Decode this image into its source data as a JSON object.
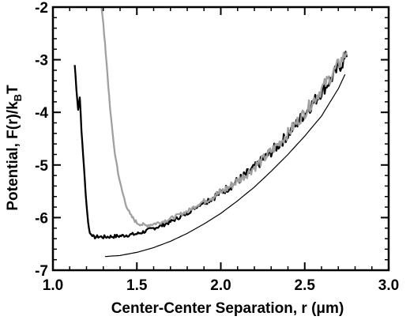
{
  "chart_data": {
    "type": "line",
    "title": "",
    "xlabel": "Center-Center Separation, r (μm)",
    "ylabel": {
      "main": "Potential, F(r)/k",
      "sub": "B",
      "tail": "T"
    },
    "xlim": [
      1.0,
      3.0
    ],
    "ylim": [
      -7.0,
      -2.0
    ],
    "x_ticks": [
      1.0,
      1.5,
      2.0,
      2.5,
      3.0
    ],
    "x_tick_labels": [
      "1.0",
      "1.5",
      "2.0",
      "2.5",
      "3.0"
    ],
    "y_ticks": [
      -7,
      -6,
      -5,
      -4,
      -3,
      -2
    ],
    "y_tick_labels": [
      "-7",
      "-6",
      "-5",
      "-4",
      "-3",
      "-2"
    ],
    "grid": false,
    "legend": "none",
    "series": [
      {
        "color": "#000000",
        "style": "noisy-thick",
        "x": [
          1.13,
          1.14,
          1.15,
          1.16,
          1.17,
          1.18,
          1.19,
          1.2,
          1.21,
          1.22,
          1.23,
          1.24,
          1.25,
          1.27,
          1.3,
          1.35,
          1.4,
          1.45,
          1.5,
          1.55,
          1.6,
          1.65,
          1.7,
          1.75,
          1.8,
          1.85,
          1.9,
          1.95,
          2.0,
          2.05,
          2.1,
          2.15,
          2.2,
          2.25,
          2.3,
          2.35,
          2.4,
          2.45,
          2.5,
          2.55,
          2.6,
          2.65,
          2.7,
          2.75
        ],
        "y": [
          -3.1,
          -3.55,
          -3.95,
          -3.7,
          -4.35,
          -4.8,
          -5.3,
          -5.75,
          -6.1,
          -6.3,
          -6.32,
          -6.35,
          -6.38,
          -6.36,
          -6.37,
          -6.36,
          -6.35,
          -6.33,
          -6.31,
          -6.26,
          -6.2,
          -6.15,
          -6.08,
          -6.0,
          -5.92,
          -5.8,
          -5.7,
          -5.62,
          -5.52,
          -5.42,
          -5.3,
          -5.18,
          -5.06,
          -4.9,
          -4.75,
          -4.6,
          -4.42,
          -4.22,
          -4.02,
          -3.82,
          -3.6,
          -3.4,
          -3.15,
          -2.95
        ]
      },
      {
        "color": "#a0a0a0",
        "style": "noisy-thick",
        "x": [
          1.29,
          1.3,
          1.31,
          1.32,
          1.33,
          1.34,
          1.35,
          1.37,
          1.4,
          1.43,
          1.46,
          1.5,
          1.55,
          1.6,
          1.65,
          1.7,
          1.75,
          1.8,
          1.85,
          1.9,
          1.95,
          2.0,
          2.05,
          2.1,
          2.15,
          2.2,
          2.25,
          2.3,
          2.35,
          2.4,
          2.45,
          2.5,
          2.55,
          2.6,
          2.65,
          2.7,
          2.75
        ],
        "y": [
          -2.0,
          -2.3,
          -2.7,
          -3.1,
          -3.5,
          -3.9,
          -4.25,
          -4.8,
          -5.35,
          -5.7,
          -5.95,
          -6.1,
          -6.15,
          -6.12,
          -6.08,
          -6.02,
          -5.95,
          -5.88,
          -5.78,
          -5.68,
          -5.6,
          -5.52,
          -5.42,
          -5.3,
          -5.18,
          -5.04,
          -4.9,
          -4.74,
          -4.58,
          -4.4,
          -4.2,
          -4.0,
          -3.78,
          -3.56,
          -3.34,
          -3.1,
          -2.85
        ]
      },
      {
        "color": "#000000",
        "style": "smooth-thin",
        "x": [
          1.31,
          1.4,
          1.5,
          1.6,
          1.7,
          1.8,
          1.9,
          2.0,
          2.1,
          2.2,
          2.3,
          2.4,
          2.5,
          2.6,
          2.7,
          2.74
        ],
        "y": [
          -6.74,
          -6.72,
          -6.66,
          -6.57,
          -6.45,
          -6.3,
          -6.12,
          -5.92,
          -5.68,
          -5.42,
          -5.12,
          -4.8,
          -4.45,
          -4.07,
          -3.55,
          -3.28
        ]
      }
    ]
  }
}
